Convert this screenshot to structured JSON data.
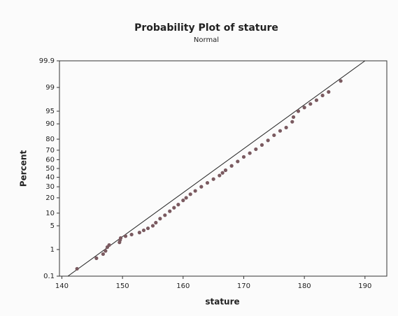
{
  "chart_data": {
    "type": "probability",
    "title": "Probability Plot of stature",
    "subtitle": "Normal",
    "x_label": "stature",
    "y_label": "Percent",
    "xlim": [
      139.6,
      193.6
    ],
    "ylim": [
      0.1,
      99.9
    ],
    "xticks": [
      140,
      150,
      160,
      170,
      180,
      190
    ],
    "yticks": [
      0.1,
      1,
      5,
      10,
      20,
      30,
      40,
      50,
      60,
      70,
      80,
      90,
      95,
      99,
      99.9
    ],
    "series": [
      {
        "color": "#7a5a60",
        "x": [
          142.5,
          145.7,
          146.8,
          147.2,
          147.5,
          147.8,
          149.5,
          149.6,
          149.7,
          150.5,
          151.5,
          152.8,
          153.5,
          154.2,
          155.0,
          155.5,
          156.2,
          157.0,
          157.8,
          158.5,
          159.2,
          160.0,
          160.5,
          161.2,
          162.0,
          163.0,
          164.0,
          165.0,
          166.0,
          166.5,
          167.0,
          168.0,
          169.0,
          170.0,
          171.0,
          172.0,
          173.0,
          174.0,
          175.0,
          176.0,
          177.0,
          178.0,
          178.2,
          179.0,
          180.0,
          181.0,
          182.0,
          183.0,
          184.0,
          186.0
        ],
        "values": [
          0.2,
          0.5,
          0.7,
          0.9,
          1.2,
          1.4,
          1.7,
          2.0,
          2.3,
          2.6,
          2.9,
          3.3,
          3.8,
          4.3,
          5.0,
          6,
          7.5,
          9,
          11,
          13,
          15,
          18,
          20,
          23,
          26,
          30,
          34,
          38,
          42,
          45,
          48,
          53,
          58,
          63,
          67,
          71,
          75,
          79,
          83,
          86,
          88,
          91,
          93,
          95,
          96,
          96.8,
          97.5,
          98.2,
          98.6,
          99.4
        ]
      }
    ],
    "fit_line": {
      "color": "#222222",
      "x": [
        141,
        190
      ],
      "values": [
        0.1,
        99.9
      ]
    }
  }
}
